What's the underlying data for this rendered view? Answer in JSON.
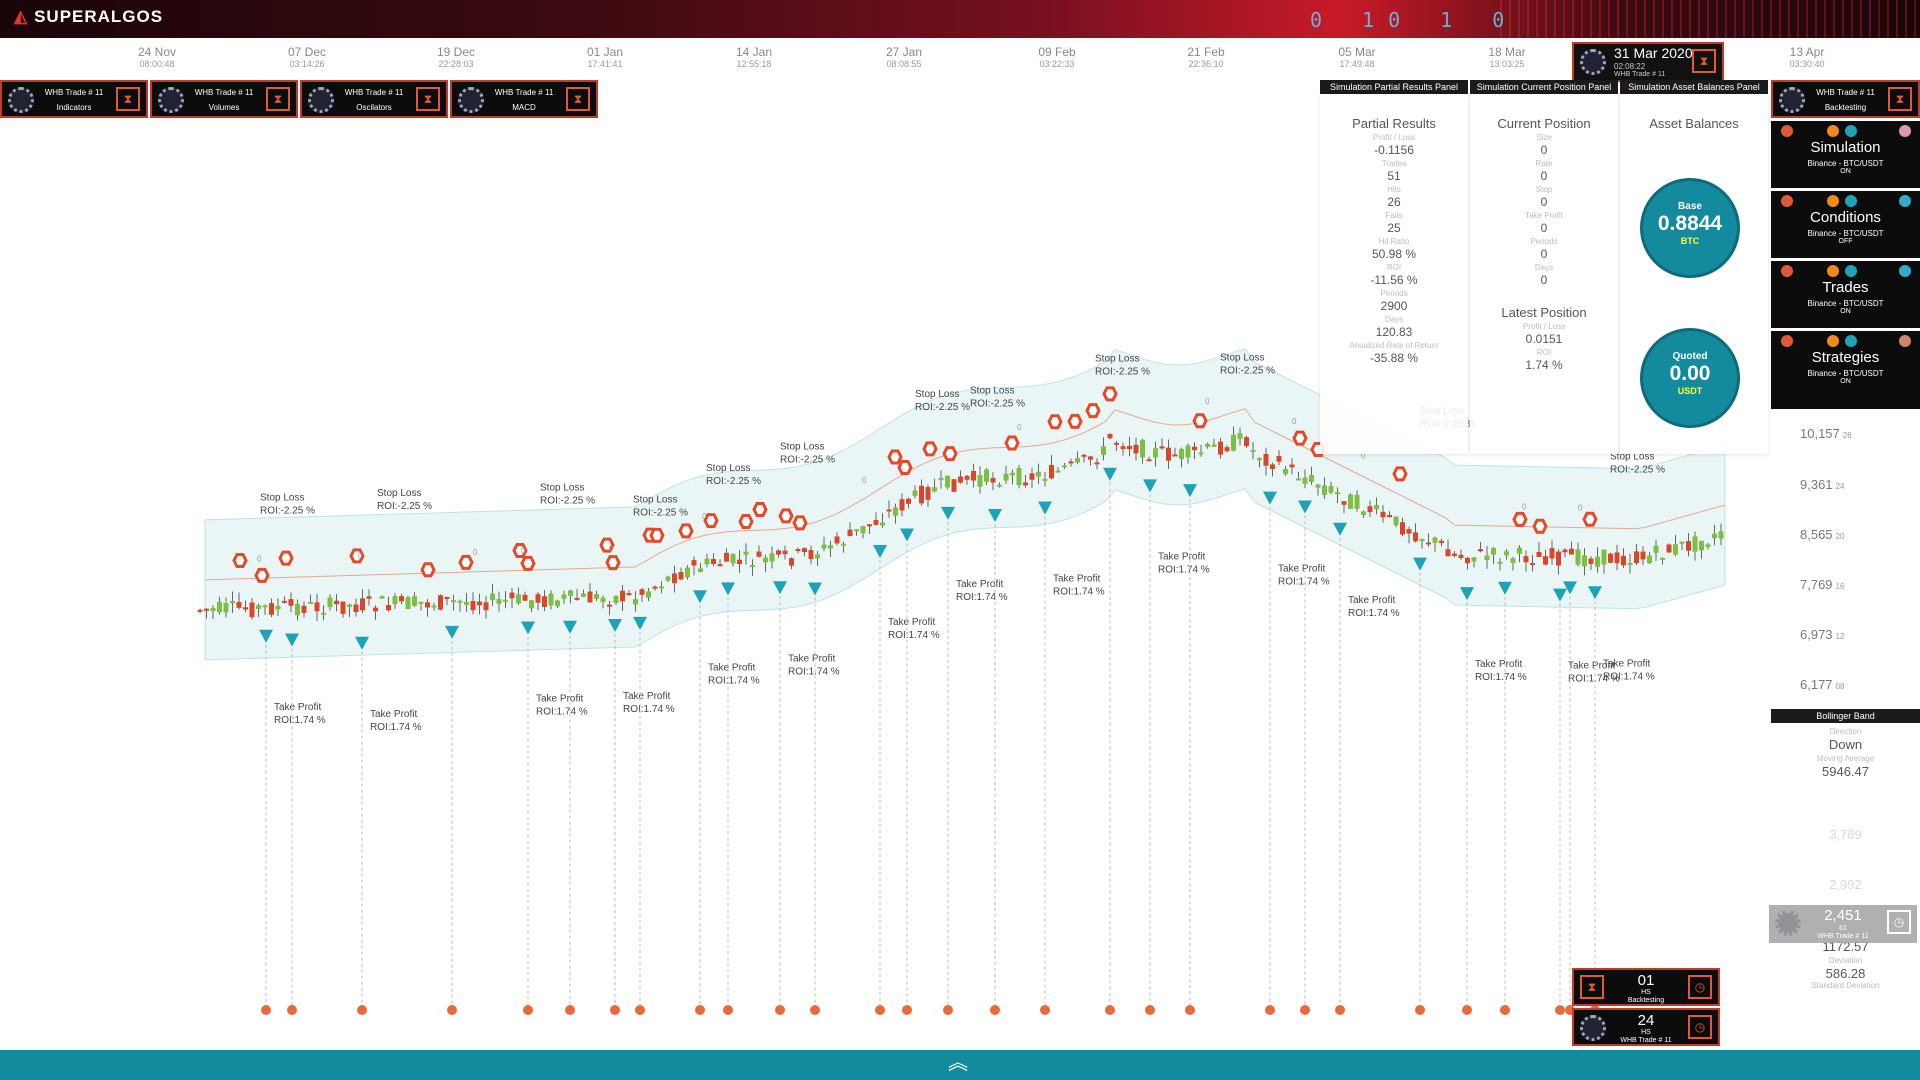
{
  "app": {
    "logo": "SUPERALGOS",
    "banner_digits": "0 10 1 0"
  },
  "timeline": {
    "ticks": [
      {
        "date": "24 Nov",
        "time": "08:00:48"
      },
      {
        "date": "07 Dec",
        "time": "03:14:26"
      },
      {
        "date": "19 Dec",
        "time": "22:28:03"
      },
      {
        "date": "01 Jan",
        "time": "17:41:41"
      },
      {
        "date": "14 Jan",
        "time": "12:55:18"
      },
      {
        "date": "27 Jan",
        "time": "08:08:55"
      },
      {
        "date": "09 Feb",
        "time": "03:22:33"
      },
      {
        "date": "21 Feb",
        "time": "22:36:10"
      },
      {
        "date": "05 Mar",
        "time": "17:49:48"
      },
      {
        "date": "18 Mar",
        "time": "13:03:25"
      },
      {
        "date": "13 Apr",
        "time": "03:30:40"
      }
    ],
    "selected": {
      "date": "31 Mar 2020",
      "time": "02:08:22",
      "name": "WHB Trade # 11"
    }
  },
  "layer_panels": [
    {
      "title": "WHB Trade # 11",
      "subtitle": "Indicators"
    },
    {
      "title": "WHB Trade # 11",
      "subtitle": "Volumes"
    },
    {
      "title": "WHB Trade # 11",
      "subtitle": "Oscilators"
    },
    {
      "title": "WHB Trade # 11",
      "subtitle": "MACD"
    }
  ],
  "panels": {
    "partial": {
      "header": "Simulation Partial Results Panel",
      "title": "Partial Results",
      "items": [
        {
          "label": "Profit / Loss",
          "value": "-0.1156"
        },
        {
          "label": "Trades",
          "value": "51"
        },
        {
          "label": "Hits",
          "value": "26"
        },
        {
          "label": "Fails",
          "value": "25"
        },
        {
          "label": "Hit Ratio",
          "value": "50.98 %"
        },
        {
          "label": "ROI",
          "value": "-11.56 %"
        },
        {
          "label": "Periods",
          "value": "2900"
        },
        {
          "label": "Days",
          "value": "120.83"
        },
        {
          "label": "Anualized Rate of Return",
          "value": "-35.88 %"
        }
      ]
    },
    "current": {
      "header": "Simulation Current Position Panel",
      "title": "Current Position",
      "items": [
        {
          "label": "Size",
          "value": "0"
        },
        {
          "label": "Rate",
          "value": "0"
        },
        {
          "label": "Stop",
          "value": "0"
        },
        {
          "label": "Take Profit",
          "value": "0"
        },
        {
          "label": "Periods",
          "value": "0"
        },
        {
          "label": "Days",
          "value": "0"
        }
      ],
      "latest_title": "Latest Position",
      "latest_items": [
        {
          "label": "Profit / Loss",
          "value": "0.0151"
        },
        {
          "label": "ROI",
          "value": "1.74 %"
        }
      ]
    },
    "assets": {
      "header": "Simulation Asset Balances Panel",
      "title": "Asset Balances",
      "base": {
        "label": "Base",
        "value": "0.8844",
        "unit": "BTC"
      },
      "quoted": {
        "label": "Quoted",
        "value": "0.00",
        "unit": "USDT"
      }
    }
  },
  "side_panel": {
    "header": {
      "title": "WHB Trade # 11",
      "subtitle": "Backtesting"
    },
    "items": [
      {
        "caption": "Simulation",
        "sub": "Binance - BTC/USDT",
        "status": "ON"
      },
      {
        "caption": "Conditions",
        "sub": "Binance - BTC/USDT",
        "status": "OFF"
      },
      {
        "caption": "Trades",
        "sub": "Binance - BTC/USDT",
        "status": "ON"
      },
      {
        "caption": "Strategies",
        "sub": "Binance - BTC/USDT",
        "status": "ON"
      }
    ]
  },
  "price_axis": [
    {
      "value": "10,157",
      "sub": "28"
    },
    {
      "value": "9,361",
      "sub": "24"
    },
    {
      "value": "8,565",
      "sub": "20"
    },
    {
      "value": "7,769",
      "sub": "16"
    },
    {
      "value": "6,973",
      "sub": "12"
    },
    {
      "value": "6,177",
      "sub": "08"
    },
    {
      "value": "3,789",
      "sub": ""
    },
    {
      "value": "2,992",
      "sub": ""
    }
  ],
  "bollinger": {
    "header": "Bollinger Band",
    "direction_label": "Direction",
    "direction": "Down",
    "ma_label": "Moving Average",
    "ma": "5946.47",
    "dev_top": "1172.57",
    "deviation_label": "Deviation",
    "deviation": "586.28",
    "std_label": "Standard Deviation"
  },
  "time_frame": {
    "value": "2,451",
    "unit": "61",
    "name": "WHB Trade # 11"
  },
  "bottom_panels": [
    {
      "value": "01",
      "unit": "HS",
      "name": "Backtesting"
    },
    {
      "value": "24",
      "unit": "HS",
      "name": "WHB Trade # 11"
    }
  ],
  "annotations": {
    "stop_loss": "Stop Loss",
    "stop_roi": "ROI:-2.25 %",
    "take_profit": "Take Profit",
    "take_roi": "ROI:1.74 %",
    "zero": "0"
  },
  "colors": {
    "accent": "#138a9e",
    "up": "#7bc043",
    "down": "#d9462a",
    "panel_border": "#c43a2a"
  }
}
